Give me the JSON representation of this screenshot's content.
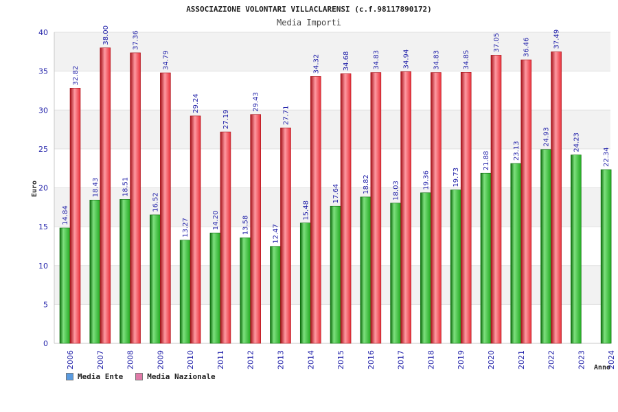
{
  "colors": {
    "ente": "#22aa22",
    "ente_light": "#7ee07e",
    "ente_dark": "#0a6b0a",
    "nazionale": "#e8303a",
    "nazionale_light": "#ff9aa2",
    "nazionale_dark": "#a51018",
    "legend_ente": "#5a9be0",
    "legend_nazionale": "#e07aa8",
    "band": "#f2f2f2"
  },
  "legend": {
    "ente_label": "Media Ente",
    "nazionale_label": "Media Nazionale"
  },
  "chart_data": {
    "type": "bar",
    "title": "ASSOCIAZIONE VOLONTARI VILLACLARENSI (c.f.98117890172)",
    "subtitle": "Media Importi",
    "xlabel": "Anno",
    "ylabel": "Euro",
    "ylim": [
      0,
      40
    ],
    "yticks": [
      0,
      5,
      10,
      15,
      20,
      25,
      30,
      35,
      40
    ],
    "categories": [
      "2006",
      "2007",
      "2008",
      "2009",
      "2010",
      "2011",
      "2012",
      "2013",
      "2014",
      "2015",
      "2016",
      "2017",
      "2018",
      "2019",
      "2020",
      "2021",
      "2022",
      "2023",
      "2024"
    ],
    "series": [
      {
        "name": "Media Ente",
        "values": [
          14.84,
          18.43,
          18.51,
          16.52,
          13.27,
          14.2,
          13.58,
          12.47,
          15.48,
          17.64,
          18.82,
          18.03,
          19.36,
          19.73,
          21.88,
          23.13,
          24.93,
          24.23,
          22.34
        ],
        "labels": [
          "14.84",
          "18.43",
          "18.51",
          "16.52",
          "13.27",
          "14.20",
          "13.58",
          "12.47",
          "15.48",
          "17.64",
          "18.82",
          "18.03",
          "19.36",
          "19.73",
          "21.88",
          "23.13",
          "24.93",
          "24.23",
          "22.34"
        ]
      },
      {
        "name": "Media Nazionale",
        "values": [
          32.82,
          38.0,
          37.36,
          34.79,
          29.24,
          27.19,
          29.43,
          27.71,
          34.32,
          34.68,
          34.83,
          34.94,
          34.83,
          34.85,
          37.05,
          36.46,
          37.49,
          null,
          null
        ],
        "labels": [
          "32.82",
          "38.00",
          "37.36",
          "34.79",
          "29.24",
          "27.19",
          "29.43",
          "27.71",
          "34.32",
          "34.68",
          "34.83",
          "34.94",
          "34.83",
          "34.85",
          "37.05",
          "36.46",
          "37.49",
          "",
          ""
        ]
      }
    ],
    "legend_position": "bottom-left"
  }
}
